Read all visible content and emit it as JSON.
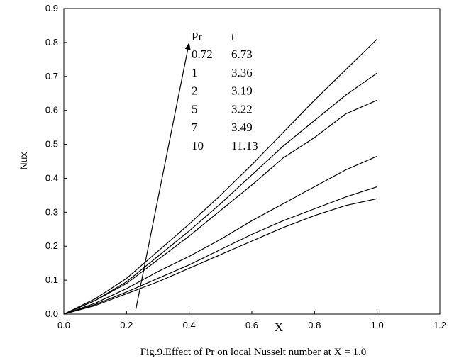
{
  "chart_data": {
    "type": "line",
    "xlabel": "X",
    "ylabel": "Nux",
    "caption": "Fig.9.Effect of Pr on local Nusselt number at X = 1.0",
    "xlim": [
      0,
      1.2
    ],
    "ylim": [
      0,
      0.9
    ],
    "x_ticks": [
      "0.0",
      "0.2",
      "0.4",
      "0.6",
      "0.8",
      "1.0",
      "1.2"
    ],
    "y_ticks": [
      "0.0",
      "0.1",
      "0.2",
      "0.3",
      "0.4",
      "0.5",
      "0.6",
      "0.7",
      "0.8",
      "0.9"
    ],
    "grid": false,
    "line_color": "#000000",
    "legend": {
      "header": [
        "Pr",
        "t"
      ],
      "rows": [
        [
          "0.72",
          "6.73"
        ],
        [
          "1",
          "3.36"
        ],
        [
          "2",
          "3.19"
        ],
        [
          "5",
          "3.22"
        ],
        [
          "7",
          "3.49"
        ],
        [
          "10",
          "11.13"
        ]
      ]
    },
    "arrow": {
      "from": [
        0.23,
        0.015
      ],
      "to": [
        0.4,
        0.8
      ]
    },
    "x": [
      0,
      0.1,
      0.2,
      0.3,
      0.4,
      0.5,
      0.6,
      0.7,
      0.8,
      0.9,
      1.0
    ],
    "series": [
      {
        "values": [
          0,
          0.028,
          0.065,
          0.105,
          0.145,
          0.19,
          0.235,
          0.275,
          0.31,
          0.345,
          0.375
        ]
      },
      {
        "values": [
          0,
          0.025,
          0.06,
          0.095,
          0.135,
          0.175,
          0.215,
          0.255,
          0.29,
          0.32,
          0.34
        ]
      },
      {
        "values": [
          0,
          0.032,
          0.075,
          0.125,
          0.17,
          0.22,
          0.275,
          0.325,
          0.375,
          0.425,
          0.465
        ]
      },
      {
        "values": [
          0,
          0.04,
          0.09,
          0.16,
          0.23,
          0.305,
          0.38,
          0.46,
          0.52,
          0.59,
          0.63
        ]
      },
      {
        "values": [
          0,
          0.04,
          0.095,
          0.17,
          0.245,
          0.325,
          0.41,
          0.495,
          0.57,
          0.645,
          0.71
        ]
      },
      {
        "values": [
          0,
          0.045,
          0.105,
          0.185,
          0.265,
          0.35,
          0.44,
          0.535,
          0.63,
          0.72,
          0.81
        ]
      }
    ]
  }
}
